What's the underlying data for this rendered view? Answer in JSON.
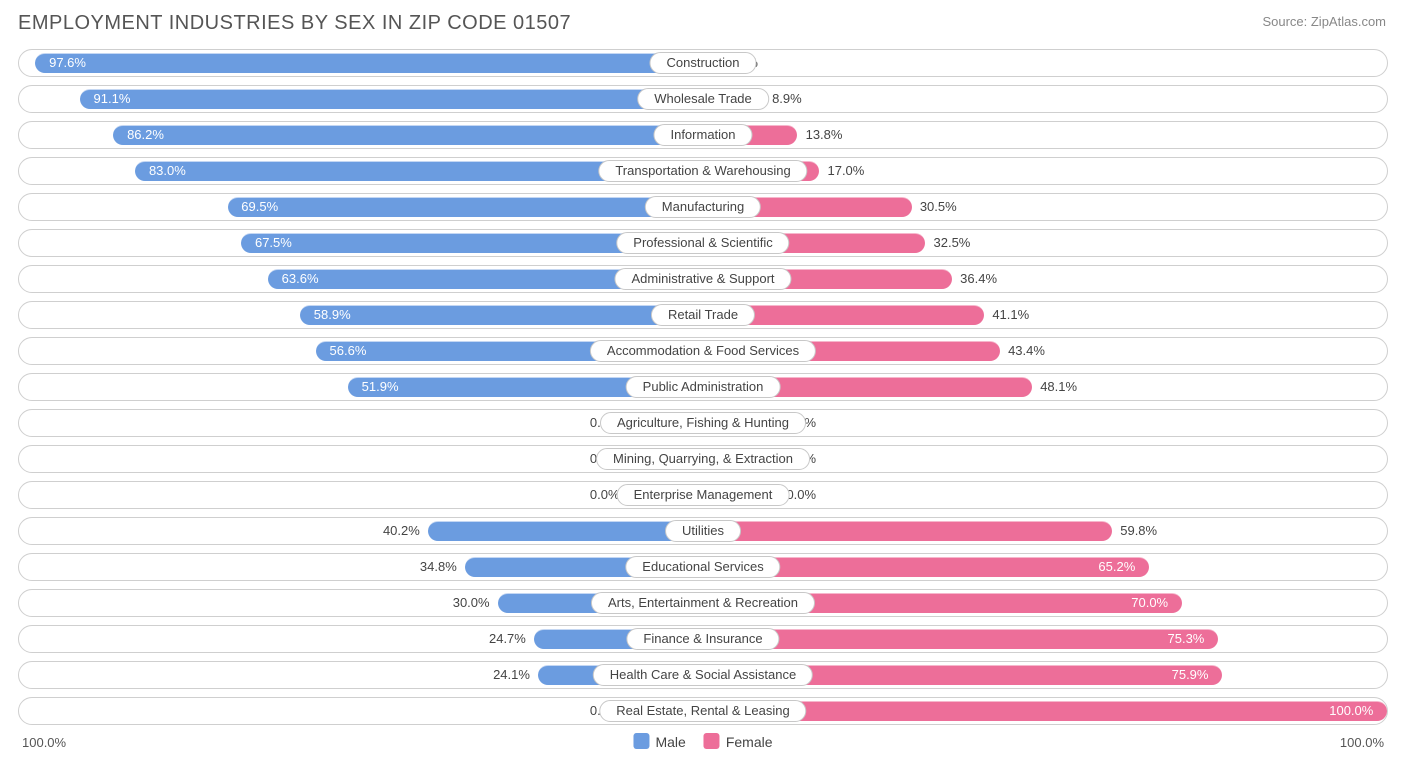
{
  "title": "EMPLOYMENT INDUSTRIES BY SEX IN ZIP CODE 01507",
  "source": "Source: ZipAtlas.com",
  "colors": {
    "male": "#6b9ce0",
    "female": "#ed6e99",
    "maleLight": "#9fbfea",
    "femaleLight": "#f3a2bd",
    "border": "#cfcfcf",
    "text": "#444444",
    "bg": "#ffffff"
  },
  "axis": {
    "left": "100.0%",
    "right": "100.0%"
  },
  "legend": {
    "male": "Male",
    "female": "Female"
  },
  "zeroBarHalfWidth": 5.5,
  "rows": [
    {
      "label": "Construction",
      "male": 97.6,
      "female": 2.5
    },
    {
      "label": "Wholesale Trade",
      "male": 91.1,
      "female": 8.9
    },
    {
      "label": "Information",
      "male": 86.2,
      "female": 13.8
    },
    {
      "label": "Transportation & Warehousing",
      "male": 83.0,
      "female": 17.0
    },
    {
      "label": "Manufacturing",
      "male": 69.5,
      "female": 30.5
    },
    {
      "label": "Professional & Scientific",
      "male": 67.5,
      "female": 32.5
    },
    {
      "label": "Administrative & Support",
      "male": 63.6,
      "female": 36.4
    },
    {
      "label": "Retail Trade",
      "male": 58.9,
      "female": 41.1
    },
    {
      "label": "Accommodation & Food Services",
      "male": 56.6,
      "female": 43.4
    },
    {
      "label": "Public Administration",
      "male": 51.9,
      "female": 48.1
    },
    {
      "label": "Agriculture, Fishing & Hunting",
      "male": 0.0,
      "female": 0.0
    },
    {
      "label": "Mining, Quarrying, & Extraction",
      "male": 0.0,
      "female": 0.0
    },
    {
      "label": "Enterprise Management",
      "male": 0.0,
      "female": 0.0
    },
    {
      "label": "Utilities",
      "male": 40.2,
      "female": 59.8
    },
    {
      "label": "Educational Services",
      "male": 34.8,
      "female": 65.2
    },
    {
      "label": "Arts, Entertainment & Recreation",
      "male": 30.0,
      "female": 70.0
    },
    {
      "label": "Finance & Insurance",
      "male": 24.7,
      "female": 75.3
    },
    {
      "label": "Health Care & Social Assistance",
      "male": 24.1,
      "female": 75.9
    },
    {
      "label": "Real Estate, Rental & Leasing",
      "male": 0.0,
      "female": 100.0
    }
  ]
}
